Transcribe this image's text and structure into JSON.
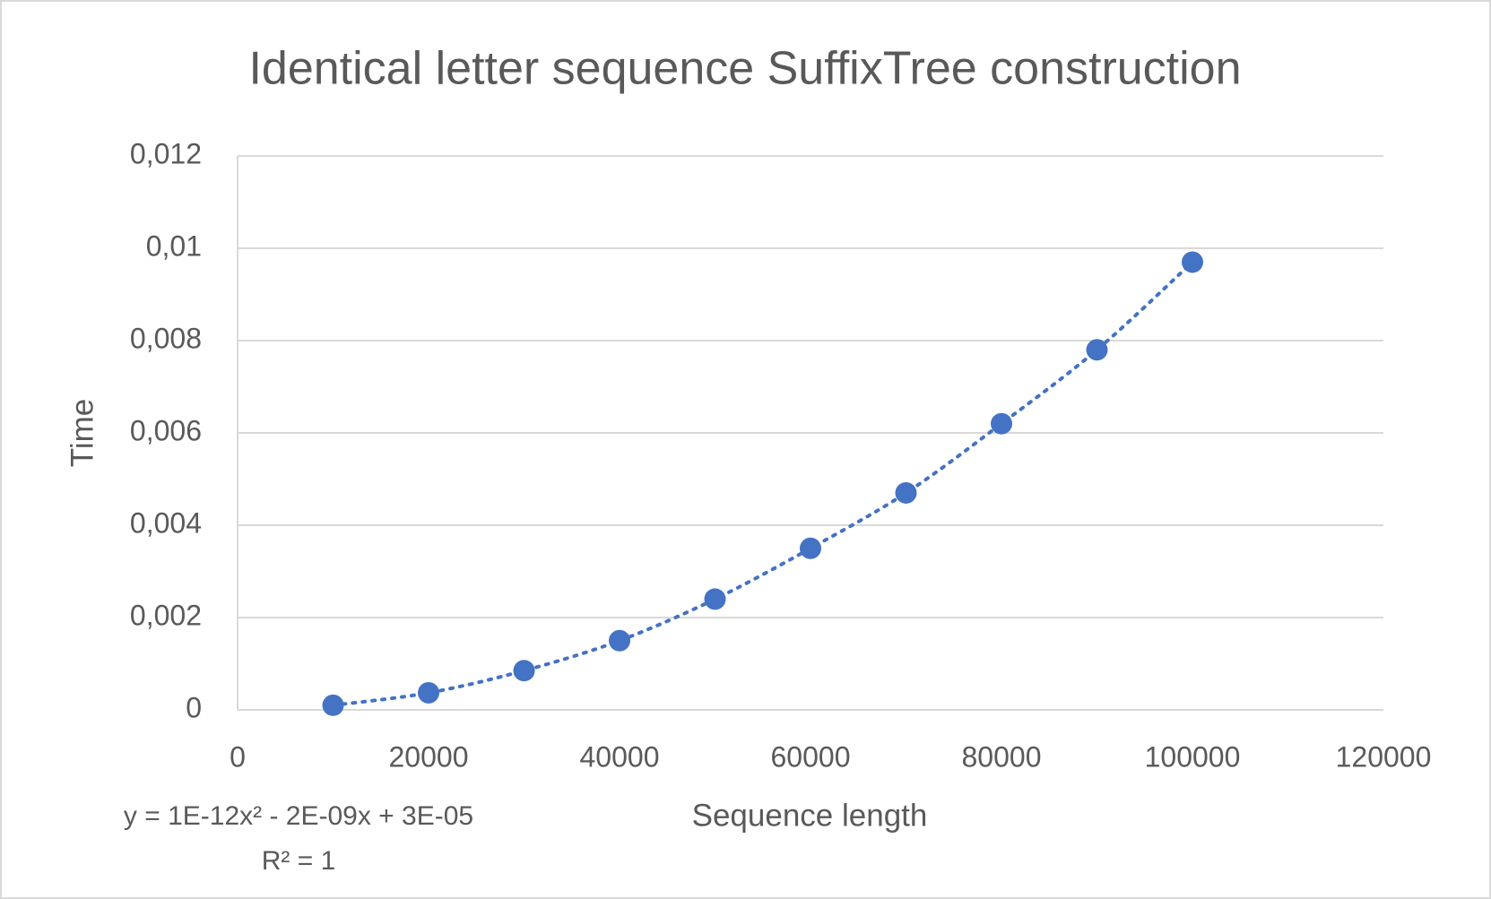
{
  "chart_data": {
    "type": "scatter",
    "title": "Identical letter sequence SuffixTree construction",
    "x_label": "Sequence length",
    "y_label": "Time",
    "x": [
      10000,
      20000,
      30000,
      40000,
      50000,
      60000,
      70000,
      80000,
      90000,
      100000
    ],
    "series": [
      {
        "color": "#4472c4",
        "values": [
          0.0001,
          0.00037,
          0.00085,
          0.0015,
          0.0024,
          0.0035,
          0.0047,
          0.0062,
          0.0078,
          0.0097
        ]
      }
    ],
    "trendline": {
      "equation": "y = 1E-12x² - 2E-09x + 3E-05",
      "r_squared": "R² = 1"
    },
    "xlim": [
      0,
      120000
    ],
    "xticks": [
      0,
      20000,
      40000,
      60000,
      80000,
      100000,
      120000
    ],
    "ylim": [
      0,
      0.012
    ],
    "yticks": [
      0,
      {
        "value": 0.002,
        "label": "0,002"
      },
      {
        "value": 0.004,
        "label": "0,004"
      },
      {
        "value": 0.006,
        "label": "0,006"
      },
      {
        "value": 0.008,
        "label": "0,008"
      },
      {
        "value": 0.01,
        "label": "0,01"
      },
      {
        "value": 0.012,
        "label": "0,012"
      }
    ],
    "grid": true
  }
}
